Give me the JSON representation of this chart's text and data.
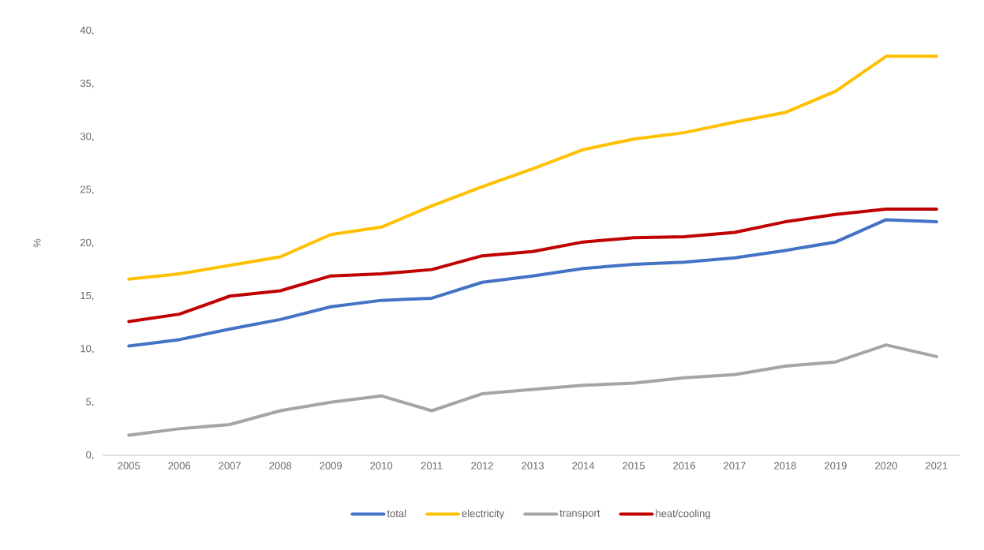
{
  "chart_data": {
    "type": "line",
    "ylabel": "%",
    "categories": [
      "2005",
      "2006",
      "2007",
      "2008",
      "2009",
      "2010",
      "2011",
      "2012",
      "2013",
      "2014",
      "2015",
      "2016",
      "2017",
      "2018",
      "2019",
      "2020",
      "2021"
    ],
    "series": [
      {
        "name": "total",
        "color": "#4472c4",
        "values": [
          10.3,
          10.9,
          11.9,
          12.8,
          14.0,
          14.6,
          14.8,
          16.3,
          16.9,
          17.6,
          18.0,
          18.2,
          18.6,
          19.3,
          20.1,
          22.2,
          22.0
        ]
      },
      {
        "name": "electricity",
        "color": "#ffc000",
        "values": [
          16.6,
          17.1,
          17.9,
          18.7,
          20.8,
          21.5,
          23.5,
          25.3,
          27.0,
          28.8,
          29.8,
          30.4,
          31.4,
          32.3,
          34.3,
          37.6,
          37.6
        ]
      },
      {
        "name": "transport",
        "color": "#a5a5a5",
        "values": [
          1.9,
          2.5,
          2.9,
          4.2,
          5.0,
          5.6,
          4.2,
          5.8,
          6.2,
          6.6,
          6.8,
          7.3,
          7.6,
          8.4,
          8.8,
          10.4,
          9.3
        ]
      },
      {
        "name": "heat/cooling",
        "color": "#c00000",
        "values": [
          12.6,
          13.3,
          15.0,
          15.5,
          16.9,
          17.1,
          17.5,
          18.8,
          19.2,
          20.1,
          20.5,
          20.6,
          21.0,
          22.0,
          22.7,
          23.2,
          23.2
        ]
      }
    ],
    "ylim": [
      0,
      40
    ],
    "yticks": [
      {
        "value": 0,
        "label": "0,"
      },
      {
        "value": 5,
        "label": "5,"
      },
      {
        "value": 10,
        "label": "10,"
      },
      {
        "value": 15,
        "label": "15,"
      },
      {
        "value": 20,
        "label": "20,"
      },
      {
        "value": 25,
        "label": "25,"
      },
      {
        "value": 30,
        "label": "30,"
      },
      {
        "value": 35,
        "label": "35,"
      },
      {
        "value": 40,
        "label": "40,"
      }
    ],
    "legend": "bottom",
    "marker": "none",
    "line_style": "solid"
  }
}
